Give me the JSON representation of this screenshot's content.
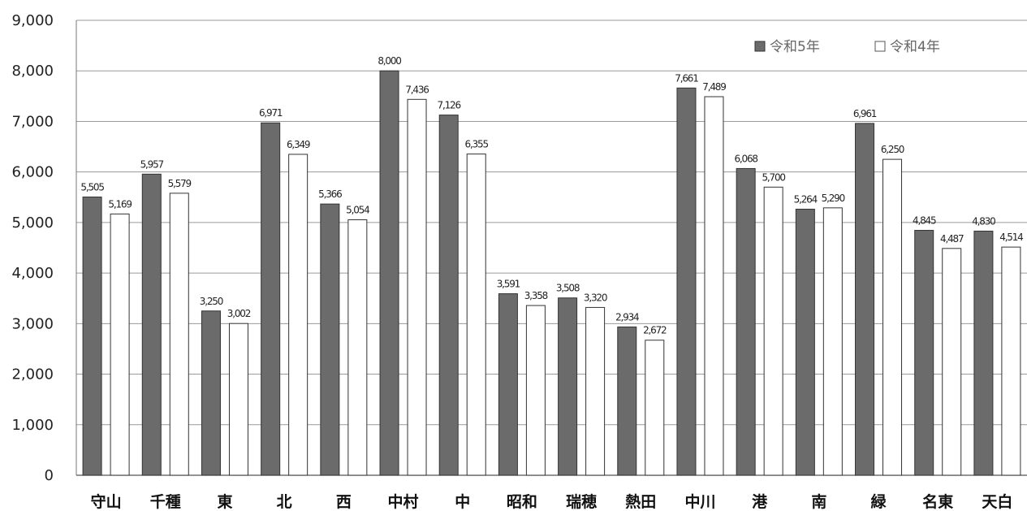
{
  "chart_data": {
    "type": "bar",
    "categories": [
      "守山",
      "千種",
      "東",
      "北",
      "西",
      "中村",
      "中",
      "昭和",
      "瑞穂",
      "熱田",
      "中川",
      "港",
      "南",
      "緑",
      "名東",
      "天白"
    ],
    "series": [
      {
        "name": "令和5年",
        "color": "#6b6b6b",
        "values": [
          5505,
          5957,
          3250,
          6971,
          5366,
          8000,
          7126,
          3591,
          3508,
          2934,
          7661,
          6068,
          5264,
          6961,
          4845,
          4830
        ],
        "labels": [
          "5,505",
          "5,957",
          "3,250",
          "6,971",
          "5,366",
          "8,000",
          "7,126",
          "3,591",
          "3,508",
          "2,934",
          "7,661",
          "6,068",
          "5,264",
          "6,961",
          "4,845",
          "4,830"
        ]
      },
      {
        "name": "令和4年",
        "color": "#ffffff",
        "values": [
          5169,
          5579,
          3002,
          6349,
          5054,
          7436,
          6355,
          3358,
          3320,
          2672,
          7489,
          5700,
          5290,
          6250,
          4487,
          4514
        ],
        "labels": [
          "5,169",
          "5,579",
          "3,002",
          "6,349",
          "5,054",
          "7,436",
          "6,355",
          "3,358",
          "3,320",
          "2,672",
          "7,489",
          "5,700",
          "5,290",
          "6,250",
          "4,487",
          "4,514"
        ]
      }
    ],
    "ylim": [
      0,
      9000
    ],
    "yticks": [
      0,
      1000,
      2000,
      3000,
      4000,
      5000,
      6000,
      7000,
      8000,
      9000
    ],
    "ytick_labels": [
      "0",
      "1,000",
      "2,000",
      "3,000",
      "4,000",
      "5,000",
      "6,000",
      "7,000",
      "8,000",
      "9,000"
    ],
    "grid": true,
    "legend_position": "top-right",
    "legend_markers": [
      "■",
      "□"
    ]
  }
}
